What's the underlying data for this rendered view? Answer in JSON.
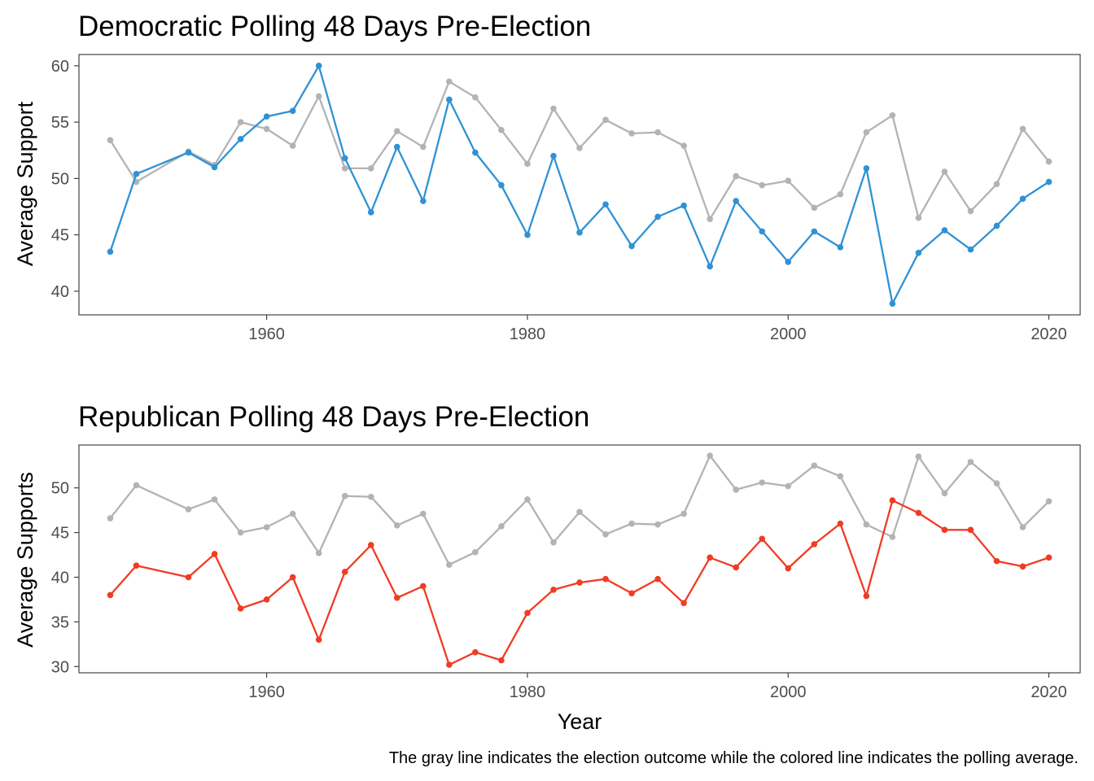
{
  "caption": "The gray line indicates the election outcome while the colored line indicates the polling average.",
  "chart_data": [
    {
      "type": "line",
      "title": "Democratic Polling 48 Days Pre-Election",
      "xlabel": "",
      "ylabel": "Average Support",
      "xlim": [
        1945.6,
        2022.4
      ],
      "ylim": [
        37.9,
        61.0
      ],
      "x_ticks": [
        1960,
        1980,
        2000,
        2020
      ],
      "y_ticks": [
        40,
        45,
        50,
        55,
        60
      ],
      "grid": false,
      "x": [
        1948,
        1950,
        1954,
        1956,
        1958,
        1960,
        1962,
        1964,
        1966,
        1968,
        1970,
        1972,
        1974,
        1976,
        1978,
        1980,
        1982,
        1984,
        1986,
        1988,
        1990,
        1992,
        1994,
        1996,
        1998,
        2000,
        2002,
        2004,
        2006,
        2008,
        2010,
        2012,
        2014,
        2016,
        2018,
        2020
      ],
      "series": [
        {
          "color": "#b3b3b3",
          "values": [
            53.4,
            49.7,
            52.4,
            51.2,
            55.0,
            54.4,
            52.9,
            57.3,
            50.9,
            50.9,
            54.2,
            52.8,
            58.6,
            57.2,
            54.3,
            51.3,
            56.2,
            52.7,
            55.2,
            54.0,
            54.1,
            52.9,
            46.4,
            50.2,
            49.4,
            49.8,
            47.4,
            48.6,
            54.1,
            55.6,
            46.5,
            50.6,
            47.1,
            49.5,
            54.4,
            51.5
          ]
        },
        {
          "color": "#2f92d4",
          "values": [
            43.5,
            50.4,
            52.3,
            51.0,
            53.5,
            55.5,
            56.0,
            60.0,
            51.8,
            47.0,
            52.8,
            48.0,
            57.0,
            52.3,
            49.4,
            45.0,
            52.0,
            45.2,
            47.7,
            44.0,
            46.6,
            47.6,
            42.2,
            48.0,
            45.3,
            42.6,
            45.3,
            43.9,
            50.9,
            38.9,
            43.4,
            45.4,
            43.7,
            45.8,
            48.2,
            49.7
          ]
        }
      ]
    },
    {
      "type": "line",
      "title": "Republican Polling 48 Days Pre-Election",
      "xlabel": "Year",
      "ylabel": "Average Supports",
      "xlim": [
        1945.6,
        2022.4
      ],
      "ylim": [
        29.3,
        54.8
      ],
      "x_ticks": [
        1960,
        1980,
        2000,
        2020
      ],
      "y_ticks": [
        30,
        35,
        40,
        45,
        50
      ],
      "grid": false,
      "x": [
        1948,
        1950,
        1954,
        1956,
        1958,
        1960,
        1962,
        1964,
        1966,
        1968,
        1970,
        1972,
        1974,
        1976,
        1978,
        1980,
        1982,
        1984,
        1986,
        1988,
        1990,
        1992,
        1994,
        1996,
        1998,
        2000,
        2002,
        2004,
        2006,
        2008,
        2010,
        2012,
        2014,
        2016,
        2018,
        2020
      ],
      "series": [
        {
          "color": "#b3b3b3",
          "values": [
            46.6,
            50.3,
            47.6,
            48.7,
            45.0,
            45.6,
            47.1,
            42.7,
            49.1,
            49.0,
            45.8,
            47.1,
            41.4,
            42.8,
            45.7,
            48.7,
            43.9,
            47.3,
            44.8,
            46.0,
            45.9,
            47.1,
            53.6,
            49.8,
            50.6,
            50.2,
            52.5,
            51.3,
            45.9,
            44.5,
            53.5,
            49.4,
            52.9,
            50.5,
            45.6,
            48.5
          ]
        },
        {
          "color": "#f03c24",
          "values": [
            38.0,
            41.3,
            40.0,
            42.6,
            36.5,
            37.5,
            40.0,
            33.0,
            40.6,
            43.6,
            37.7,
            39.0,
            30.2,
            31.6,
            30.7,
            36.0,
            38.6,
            39.4,
            39.8,
            38.2,
            39.8,
            37.1,
            42.2,
            41.1,
            44.3,
            41.0,
            43.7,
            46.0,
            37.9,
            48.6,
            47.2,
            45.3,
            45.3,
            41.8,
            41.2,
            42.2
          ]
        }
      ]
    }
  ]
}
